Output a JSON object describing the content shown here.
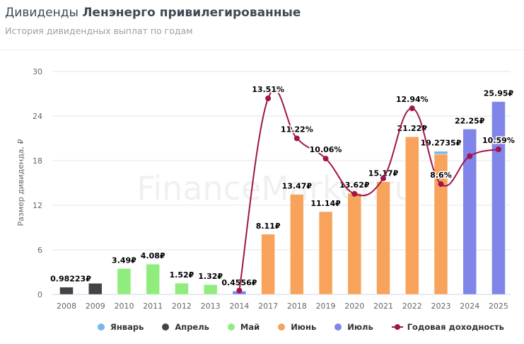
{
  "header": {
    "title_prefix": "Дивиденды",
    "title_company": "Ленэнерго привилегированные",
    "subtitle": "История дивидендных выплат по годам"
  },
  "watermark": "FinanceMarker.ru",
  "chart_data": {
    "type": "bar",
    "ylabel": "Размер дивиденда, ₽",
    "ylim": [
      0,
      30
    ],
    "yticks": [
      "0",
      "6",
      "12",
      "18",
      "24",
      "30"
    ],
    "grid": true,
    "legend_position": "bottom",
    "categories": [
      "2008",
      "2009",
      "2010",
      "2011",
      "2012",
      "2013",
      "2014",
      "2017",
      "2018",
      "2019",
      "2020",
      "2021",
      "2022",
      "2023",
      "2024",
      "2025"
    ],
    "series": [
      {
        "name": "Январь",
        "color": "#7cb5ec",
        "values": [
          0,
          0,
          0,
          0,
          0,
          0,
          0,
          0,
          0,
          0,
          0,
          0,
          0,
          0.4,
          0,
          0
        ]
      },
      {
        "name": "Апрель",
        "color": "#434348",
        "values": [
          0.98223,
          1.5,
          0,
          0,
          0,
          0,
          0,
          0,
          0,
          0,
          0,
          0,
          0,
          0,
          0,
          0
        ]
      },
      {
        "name": "Май",
        "color": "#90ed7d",
        "values": [
          0,
          0,
          3.49,
          4.08,
          1.52,
          1.32,
          0,
          0,
          0,
          0,
          0,
          0,
          0,
          0,
          0,
          0
        ]
      },
      {
        "name": "Июнь",
        "color": "#f7a35c",
        "values": [
          0,
          0,
          0,
          0,
          0,
          0,
          0,
          8.11,
          13.47,
          11.14,
          13.62,
          15.17,
          21.22,
          18.87,
          0,
          0
        ]
      },
      {
        "name": "Июль",
        "color": "#8085e9",
        "values": [
          0,
          0,
          0,
          0,
          0,
          0,
          0.4556,
          0,
          0,
          0,
          0,
          0,
          0,
          0,
          22.25,
          25.95
        ]
      }
    ],
    "bar_labels": [
      "0.98223₽",
      "",
      "3.49₽",
      "4.08₽",
      "1.52₽",
      "1.32₽",
      "0.4556₽",
      "8.11₽",
      "13.47₽",
      "11.14₽",
      "13.62₽",
      "15.17₽",
      "21.22₽",
      "19.2735₽",
      "22.25₽",
      "25.95₽"
    ],
    "line": {
      "name": "Годовая доходность",
      "color": "#a0154a",
      "values": [
        null,
        null,
        null,
        null,
        null,
        null,
        2.5,
        13.51,
        11.22,
        10.06,
        8.04,
        8.93,
        12.94,
        8.6,
        10.2,
        10.59
      ],
      "labels": [
        "",
        "",
        "",
        "",
        "",
        "",
        "",
        "13.51%",
        "11.22%",
        "10.06%",
        "",
        "",
        "12.94%",
        "8.6%",
        "",
        "10.59%"
      ]
    }
  }
}
